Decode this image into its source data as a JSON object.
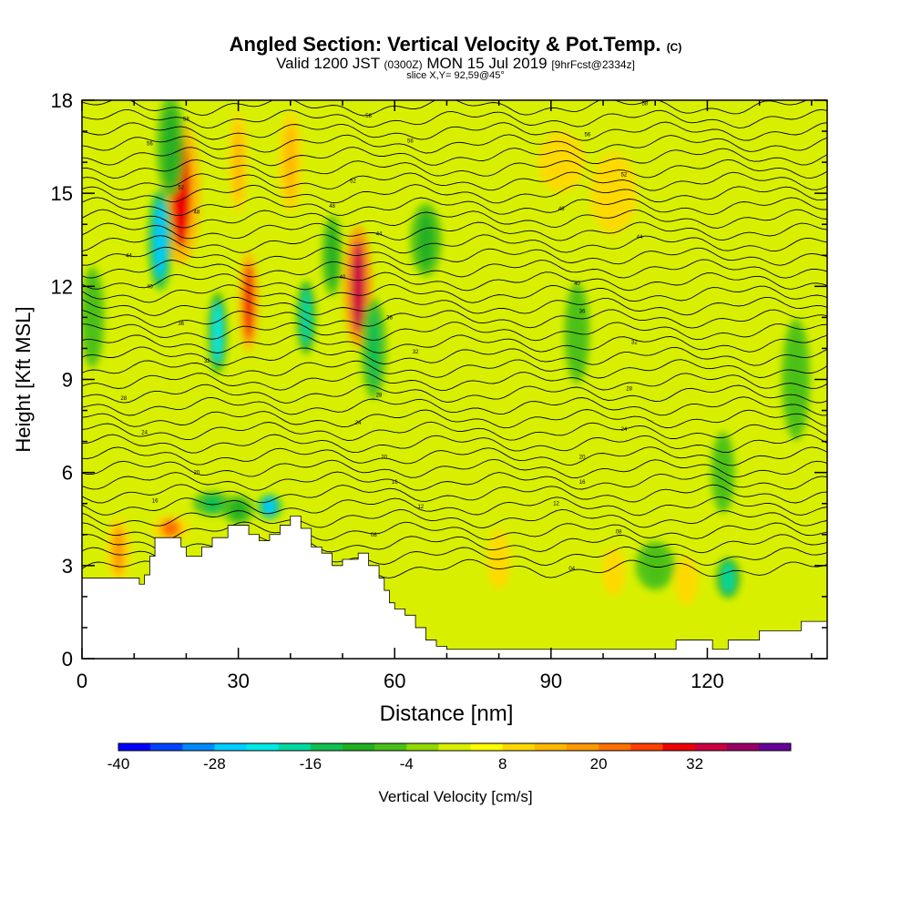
{
  "header": {
    "title_main": "Angled Section: Vertical Velocity & Pot.Temp.",
    "title_suffix": "(C)",
    "valid_prefix": "Valid 1200 JST",
    "valid_utc": "(0300Z)",
    "valid_date": "MON 15 Jul 2019",
    "forecast": "[9hrFcst@2334z]",
    "slice": "slice X,Y= 92,59@45°"
  },
  "chart_data": {
    "type": "heatmap",
    "xlabel": "Distance [nm]",
    "ylabel": "Height [Kft MSL]",
    "xlim": [
      0,
      143
    ],
    "ylim": [
      0,
      18
    ],
    "x_ticks": [
      0,
      30,
      60,
      90,
      120
    ],
    "y_ticks": [
      0,
      3,
      6,
      9,
      12,
      15,
      18
    ],
    "colorbar": {
      "label": "Vertical Velocity [cm/s]",
      "ticks": [
        -40,
        -28,
        -16,
        -4,
        8,
        20,
        32
      ],
      "levels": [
        -40,
        -36,
        -32,
        -28,
        -24,
        -20,
        -16,
        -12,
        -8,
        -4,
        0,
        4,
        8,
        12,
        16,
        20,
        24,
        28,
        32,
        36,
        40
      ],
      "colors": [
        "#0000ff",
        "#0044ff",
        "#0088ff",
        "#00ccff",
        "#00e8e8",
        "#00d8a0",
        "#10c050",
        "#20b020",
        "#48c018",
        "#90d800",
        "#d8f000",
        "#ffff00",
        "#ffd800",
        "#ffb800",
        "#ff9800",
        "#ff7000",
        "#ff4000",
        "#ee0000",
        "#cc0040",
        "#990066",
        "#660099"
      ]
    },
    "background_value": 2,
    "terrain_kft": [
      [
        0,
        2.6
      ],
      [
        2,
        2.6
      ],
      [
        10,
        2.6
      ],
      [
        11,
        2.4
      ],
      [
        12,
        2.7
      ],
      [
        13,
        3.3
      ],
      [
        14,
        3.9
      ],
      [
        18,
        3.9
      ],
      [
        19,
        3.6
      ],
      [
        20,
        3.3
      ],
      [
        23,
        3.6
      ],
      [
        25,
        3.9
      ],
      [
        28,
        4.3
      ],
      [
        30,
        4.3
      ],
      [
        32,
        4.0
      ],
      [
        34,
        3.8
      ],
      [
        36,
        4.0
      ],
      [
        38,
        4.3
      ],
      [
        40,
        4.6
      ],
      [
        42,
        4.2
      ],
      [
        44,
        3.6
      ],
      [
        46,
        3.4
      ],
      [
        48,
        3.0
      ],
      [
        50,
        3.2
      ],
      [
        53,
        3.4
      ],
      [
        55,
        3.0
      ],
      [
        57,
        2.6
      ],
      [
        58,
        2.2
      ],
      [
        59,
        1.8
      ],
      [
        60,
        1.6
      ],
      [
        62,
        1.4
      ],
      [
        64,
        1.0
      ],
      [
        66,
        0.6
      ],
      [
        68,
        0.4
      ],
      [
        70,
        0.3
      ],
      [
        100,
        0.3
      ],
      [
        110,
        0.3
      ],
      [
        113,
        0.3
      ],
      [
        114,
        0.6
      ],
      [
        120,
        0.6
      ],
      [
        121,
        0.3
      ],
      [
        124,
        0.6
      ],
      [
        130,
        0.9
      ],
      [
        135,
        0.9
      ],
      [
        138,
        1.2
      ],
      [
        143,
        1.2
      ]
    ],
    "velocity_features": [
      {
        "x": 7,
        "y": 3.5,
        "width_nm": 1.5,
        "height_kft": 1.6,
        "value": 18
      },
      {
        "x": 17,
        "y": 4.2,
        "width_nm": 2.5,
        "height_kft": 0.6,
        "value": 22
      },
      {
        "x": 19,
        "y": 15.0,
        "width_nm": 2.5,
        "height_kft": 3.5,
        "value": 30
      },
      {
        "x": 15,
        "y": 13.5,
        "width_nm": 1.5,
        "height_kft": 2.5,
        "value": -25
      },
      {
        "x": 17,
        "y": 16.5,
        "width_nm": 1.8,
        "height_kft": 2.5,
        "value": -10
      },
      {
        "x": 32,
        "y": 11.5,
        "width_nm": 1.3,
        "height_kft": 2.5,
        "value": 30
      },
      {
        "x": 26,
        "y": 10.5,
        "width_nm": 1.2,
        "height_kft": 2.0,
        "value": -22
      },
      {
        "x": 30,
        "y": 16.0,
        "width_nm": 1.2,
        "height_kft": 2.5,
        "value": 14
      },
      {
        "x": 53,
        "y": 12.0,
        "width_nm": 1.8,
        "height_kft": 3.0,
        "value": 32
      },
      {
        "x": 56,
        "y": 10.0,
        "width_nm": 1.6,
        "height_kft": 2.5,
        "value": -14
      },
      {
        "x": 48,
        "y": 13.0,
        "width_nm": 1.3,
        "height_kft": 2.0,
        "value": -12
      },
      {
        "x": 43,
        "y": 11.0,
        "width_nm": 1.2,
        "height_kft": 1.8,
        "value": -20
      },
      {
        "x": 36,
        "y": 4.9,
        "width_nm": 1.5,
        "height_kft": 0.6,
        "value": -26
      },
      {
        "x": 30,
        "y": 4.8,
        "width_nm": 2.0,
        "height_kft": 0.7,
        "value": -12
      },
      {
        "x": 25,
        "y": 5.0,
        "width_nm": 2.5,
        "height_kft": 0.6,
        "value": -14
      },
      {
        "x": 66,
        "y": 13.5,
        "width_nm": 2.0,
        "height_kft": 1.8,
        "value": -10
      },
      {
        "x": 92,
        "y": 16.0,
        "width_nm": 3.0,
        "height_kft": 1.5,
        "value": 10
      },
      {
        "x": 102,
        "y": 15.0,
        "width_nm": 3.0,
        "height_kft": 2.0,
        "value": 9
      },
      {
        "x": 95,
        "y": 10.5,
        "width_nm": 1.6,
        "height_kft": 2.5,
        "value": -8
      },
      {
        "x": 124,
        "y": 2.6,
        "width_nm": 1.5,
        "height_kft": 1.0,
        "value": -20
      },
      {
        "x": 123,
        "y": 6.0,
        "width_nm": 1.5,
        "height_kft": 2.0,
        "value": -6
      },
      {
        "x": 137,
        "y": 9.0,
        "width_nm": 1.8,
        "height_kft": 3.0,
        "value": -8
      },
      {
        "x": 2,
        "y": 11.0,
        "width_nm": 1.5,
        "height_kft": 2.5,
        "value": -8
      },
      {
        "x": 110,
        "y": 3.0,
        "width_nm": 2.5,
        "height_kft": 1.2,
        "value": -6
      },
      {
        "x": 80,
        "y": 3.2,
        "width_nm": 1.5,
        "height_kft": 1.5,
        "value": 9
      },
      {
        "x": 102,
        "y": 2.8,
        "width_nm": 1.5,
        "height_kft": 1.2,
        "value": 10
      },
      {
        "x": 116,
        "y": 2.5,
        "width_nm": 1.5,
        "height_kft": 1.2,
        "value": 10
      },
      {
        "x": 40,
        "y": 16.0,
        "width_nm": 1.5,
        "height_kft": 2.5,
        "value": 12
      }
    ],
    "theta_contours": {
      "count": 38,
      "y_bottom_kft": 2.9,
      "y_top_kft": 17.8,
      "labels": [
        {
          "x": 20,
          "y": 17.4,
          "text": "58"
        },
        {
          "x": 55,
          "y": 17.5,
          "text": "58"
        },
        {
          "x": 108,
          "y": 17.9,
          "text": "58"
        },
        {
          "x": 13,
          "y": 16.6,
          "text": "56"
        },
        {
          "x": 63,
          "y": 16.7,
          "text": "56"
        },
        {
          "x": 97,
          "y": 16.9,
          "text": "56"
        },
        {
          "x": 19,
          "y": 15.2,
          "text": "52"
        },
        {
          "x": 52,
          "y": 15.4,
          "text": "52"
        },
        {
          "x": 104,
          "y": 15.6,
          "text": "52"
        },
        {
          "x": 22,
          "y": 14.4,
          "text": "48"
        },
        {
          "x": 48,
          "y": 14.6,
          "text": "48"
        },
        {
          "x": 92,
          "y": 14.5,
          "text": "48"
        },
        {
          "x": 9,
          "y": 13.0,
          "text": "44"
        },
        {
          "x": 57,
          "y": 13.7,
          "text": "44"
        },
        {
          "x": 107,
          "y": 13.6,
          "text": "44"
        },
        {
          "x": 13,
          "y": 12.0,
          "text": "40"
        },
        {
          "x": 50,
          "y": 12.3,
          "text": "40"
        },
        {
          "x": 95,
          "y": 12.1,
          "text": "40"
        },
        {
          "x": 19,
          "y": 10.8,
          "text": "36"
        },
        {
          "x": 59,
          "y": 11.0,
          "text": "36"
        },
        {
          "x": 96,
          "y": 11.2,
          "text": "36"
        },
        {
          "x": 24,
          "y": 9.6,
          "text": "32"
        },
        {
          "x": 64,
          "y": 9.9,
          "text": "32"
        },
        {
          "x": 106,
          "y": 10.2,
          "text": "32"
        },
        {
          "x": 8,
          "y": 8.4,
          "text": "28"
        },
        {
          "x": 57,
          "y": 8.5,
          "text": "28"
        },
        {
          "x": 105,
          "y": 8.7,
          "text": "28"
        },
        {
          "x": 12,
          "y": 7.3,
          "text": "24"
        },
        {
          "x": 53,
          "y": 7.6,
          "text": "24"
        },
        {
          "x": 104,
          "y": 7.4,
          "text": "24"
        },
        {
          "x": 22,
          "y": 6.0,
          "text": "20"
        },
        {
          "x": 58,
          "y": 6.5,
          "text": "20"
        },
        {
          "x": 96,
          "y": 6.5,
          "text": "20"
        },
        {
          "x": 14,
          "y": 5.1,
          "text": "16"
        },
        {
          "x": 60,
          "y": 5.7,
          "text": "16"
        },
        {
          "x": 96,
          "y": 5.7,
          "text": "16"
        },
        {
          "x": 65,
          "y": 4.9,
          "text": "12"
        },
        {
          "x": 91,
          "y": 5.0,
          "text": "12"
        },
        {
          "x": 56,
          "y": 4.0,
          "text": "08"
        },
        {
          "x": 103,
          "y": 4.1,
          "text": "08"
        },
        {
          "x": 94,
          "y": 2.9,
          "text": "04"
        }
      ]
    }
  }
}
